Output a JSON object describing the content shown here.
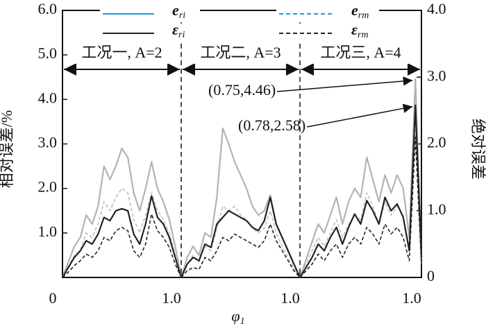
{
  "chart_data": {
    "type": "line",
    "xlabel": "φ1",
    "ylabel": "相对误差/%",
    "y2label": "绝对误差",
    "ylim": [
      0,
      6
    ],
    "yticks": [
      {
        "value": 1,
        "label": "1.0"
      },
      {
        "value": 2,
        "label": "2.0"
      },
      {
        "value": 3,
        "label": "3.0"
      },
      {
        "value": 4,
        "label": "4.0"
      },
      {
        "value": 5,
        "label": "5.0"
      },
      {
        "value": 6,
        "label": "6.0"
      }
    ],
    "y2lim": [
      0,
      4
    ],
    "y2ticks": [
      0,
      {
        "value": 1,
        "label": "1.0"
      },
      {
        "value": 2,
        "label": "2.0"
      },
      {
        "value": 3,
        "label": "3.0"
      },
      {
        "value": 4,
        "label": "4.0"
      }
    ],
    "series": [
      {
        "name": "eri",
        "color": "#b3b3b3",
        "legend_color": "#1a9bd7",
        "linestyle": "solid",
        "axis": "y"
      },
      {
        "name": "erm",
        "color": "#bdbdbd",
        "legend_color": "#1a9bd7",
        "linestyle": "dashed",
        "axis": "y"
      },
      {
        "name": "εri",
        "color": "#222222",
        "legend_color": "#222222",
        "linestyle": "solid",
        "axis": "y2"
      },
      {
        "name": "εrm",
        "color": "#222222",
        "legend_color": "#222222",
        "linestyle": "dashed",
        "axis": "y2"
      }
    ],
    "panels": [
      {
        "label": "工况一, A=2",
        "xlim": [
          0,
          1
        ],
        "xticks": [
          0,
          {
            "value": 1,
            "label": "1.0"
          }
        ],
        "x": [
          0,
          0.05,
          0.1,
          0.15,
          0.2,
          0.25,
          0.3,
          0.35,
          0.4,
          0.45,
          0.5,
          0.55,
          0.6,
          0.65,
          0.7,
          0.75,
          0.8,
          0.85,
          0.9,
          0.95,
          1
        ],
        "series": [
          {
            "values": [
              0,
              0.35,
              0.7,
              0.9,
              1.4,
              1.2,
              1.6,
              2.5,
              2.2,
              2.5,
              2.9,
              2.7,
              1.9,
              1.5,
              2.0,
              2.6,
              2.0,
              1.7,
              1.3,
              0.7,
              0
            ]
          },
          {
            "values": [
              0,
              0.25,
              0.5,
              0.6,
              1.0,
              0.9,
              1.2,
              1.7,
              1.5,
              1.8,
              2.0,
              1.9,
              1.3,
              1.0,
              1.4,
              1.9,
              1.5,
              1.3,
              1.0,
              0.5,
              0
            ]
          },
          {
            "values": [
              0,
              0.15,
              0.3,
              0.4,
              0.55,
              0.5,
              0.65,
              0.9,
              0.85,
              1.0,
              1.03,
              1.0,
              0.65,
              0.5,
              0.8,
              1.22,
              0.9,
              0.8,
              0.6,
              0.3,
              0
            ]
          },
          {
            "values": [
              0,
              0.08,
              0.18,
              0.25,
              0.35,
              0.3,
              0.4,
              0.6,
              0.55,
              0.7,
              0.75,
              0.7,
              0.4,
              0.3,
              0.5,
              0.95,
              0.7,
              0.6,
              0.45,
              0.2,
              0
            ]
          }
        ]
      },
      {
        "label": "工况二, A=3",
        "xlim": [
          0,
          1
        ],
        "xticks": [
          {
            "value": 1,
            "label": "1.0"
          }
        ],
        "x": [
          0,
          0.05,
          0.1,
          0.15,
          0.2,
          0.25,
          0.3,
          0.35,
          0.4,
          0.45,
          0.5,
          0.55,
          0.6,
          0.65,
          0.7,
          0.75,
          0.8,
          0.85,
          0.9,
          0.95,
          1
        ],
        "series": [
          {
            "values": [
              0,
              0.45,
              0.7,
              0.5,
              1.0,
              0.9,
              1.8,
              3.35,
              3.0,
              2.6,
              2.3,
              2.0,
              1.6,
              1.4,
              1.5,
              1.85,
              1.2,
              0.9,
              0.6,
              0.3,
              0
            ]
          },
          {
            "values": [
              0,
              0.3,
              0.5,
              0.35,
              0.7,
              0.6,
              1.1,
              1.6,
              1.5,
              1.6,
              1.4,
              1.3,
              1.1,
              1.0,
              1.1,
              1.5,
              1.0,
              0.7,
              0.45,
              0.2,
              0
            ]
          },
          {
            "values": [
              0,
              0.2,
              0.3,
              0.25,
              0.5,
              0.45,
              0.8,
              0.9,
              1.0,
              0.95,
              0.9,
              0.85,
              0.75,
              0.7,
              0.85,
              1.2,
              0.8,
              0.6,
              0.4,
              0.2,
              0
            ]
          },
          {
            "values": [
              0,
              0.1,
              0.15,
              0.12,
              0.3,
              0.25,
              0.4,
              0.6,
              0.55,
              0.65,
              0.6,
              0.55,
              0.5,
              0.45,
              0.55,
              0.8,
              0.55,
              0.4,
              0.25,
              0.1,
              0
            ]
          }
        ]
      },
      {
        "label": "工况三, A=4",
        "xlim": [
          0,
          1
        ],
        "xticks": [
          {
            "value": 1,
            "label": "1.0"
          }
        ],
        "x": [
          0,
          0.05,
          0.1,
          0.15,
          0.2,
          0.25,
          0.3,
          0.35,
          0.4,
          0.45,
          0.5,
          0.55,
          0.6,
          0.65,
          0.7,
          0.75,
          0.8,
          0.85,
          0.9,
          0.95,
          1
        ],
        "series": [
          {
            "values": [
              0,
              0.4,
              0.8,
              1.2,
              1.0,
              1.4,
              1.8,
              1.2,
              1.7,
              2.0,
              1.8,
              2.7,
              2.2,
              1.7,
              2.3,
              1.9,
              2.3,
              2.0,
              0.9,
              4.46,
              0.4
            ]
          },
          {
            "values": [
              0,
              0.3,
              0.6,
              0.9,
              0.7,
              1.0,
              1.3,
              0.9,
              1.2,
              1.4,
              1.3,
              1.9,
              1.6,
              1.2,
              1.7,
              1.4,
              1.6,
              1.4,
              0.6,
              3.3,
              0.3
            ]
          },
          {
            "values": [
              0,
              0.15,
              0.3,
              0.5,
              0.4,
              0.6,
              0.75,
              0.5,
              0.75,
              0.95,
              0.8,
              1.15,
              1.0,
              0.8,
              1.2,
              1.0,
              1.1,
              0.9,
              0.4,
              2.58,
              0.3
            ]
          },
          {
            "values": [
              0,
              0.1,
              0.2,
              0.35,
              0.25,
              0.4,
              0.5,
              0.3,
              0.5,
              0.6,
              0.5,
              0.75,
              0.65,
              0.5,
              0.8,
              0.65,
              0.75,
              0.6,
              0.25,
              2.1,
              0.2
            ]
          }
        ]
      }
    ],
    "annotations": [
      {
        "text": "(0.75,4.46)",
        "panel": 2,
        "series": 0
      },
      {
        "text": "(0.78,2.58)",
        "panel": 2,
        "series": 2
      }
    ]
  }
}
